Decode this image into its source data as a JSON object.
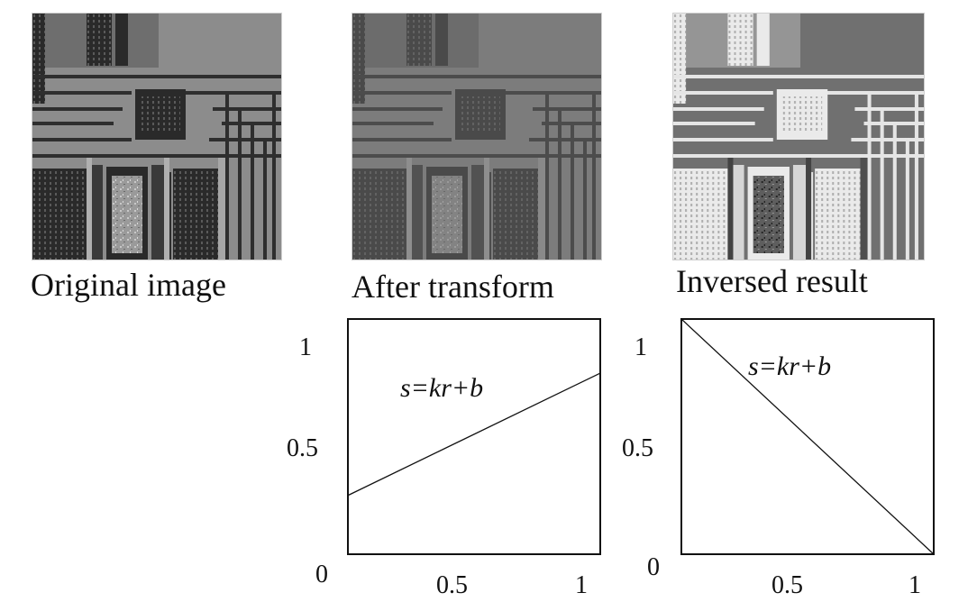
{
  "captions": {
    "original": "Original image",
    "transform": "After transform",
    "inverse": "Inversed result"
  },
  "images": [
    {
      "name": "original",
      "tone": "normal"
    },
    {
      "name": "transform",
      "tone": "compressed"
    },
    {
      "name": "inverse",
      "tone": "inverted"
    }
  ],
  "chart_data": [
    {
      "type": "line",
      "annotation": "s=kr+b",
      "x": [
        0,
        1
      ],
      "y": [
        0.25,
        0.77
      ],
      "xlim": [
        0,
        1
      ],
      "ylim": [
        0,
        1
      ],
      "xticks": [
        "0.5",
        "1"
      ],
      "yticks": [
        "1",
        "0.5",
        "0"
      ]
    },
    {
      "type": "line",
      "annotation": "s=kr+b",
      "x": [
        0,
        1
      ],
      "y": [
        1,
        0
      ],
      "xlim": [
        0,
        1
      ],
      "ylim": [
        0,
        1
      ],
      "xticks": [
        "0.5",
        "1"
      ],
      "yticks": [
        "1",
        "0.5",
        "0"
      ]
    }
  ]
}
